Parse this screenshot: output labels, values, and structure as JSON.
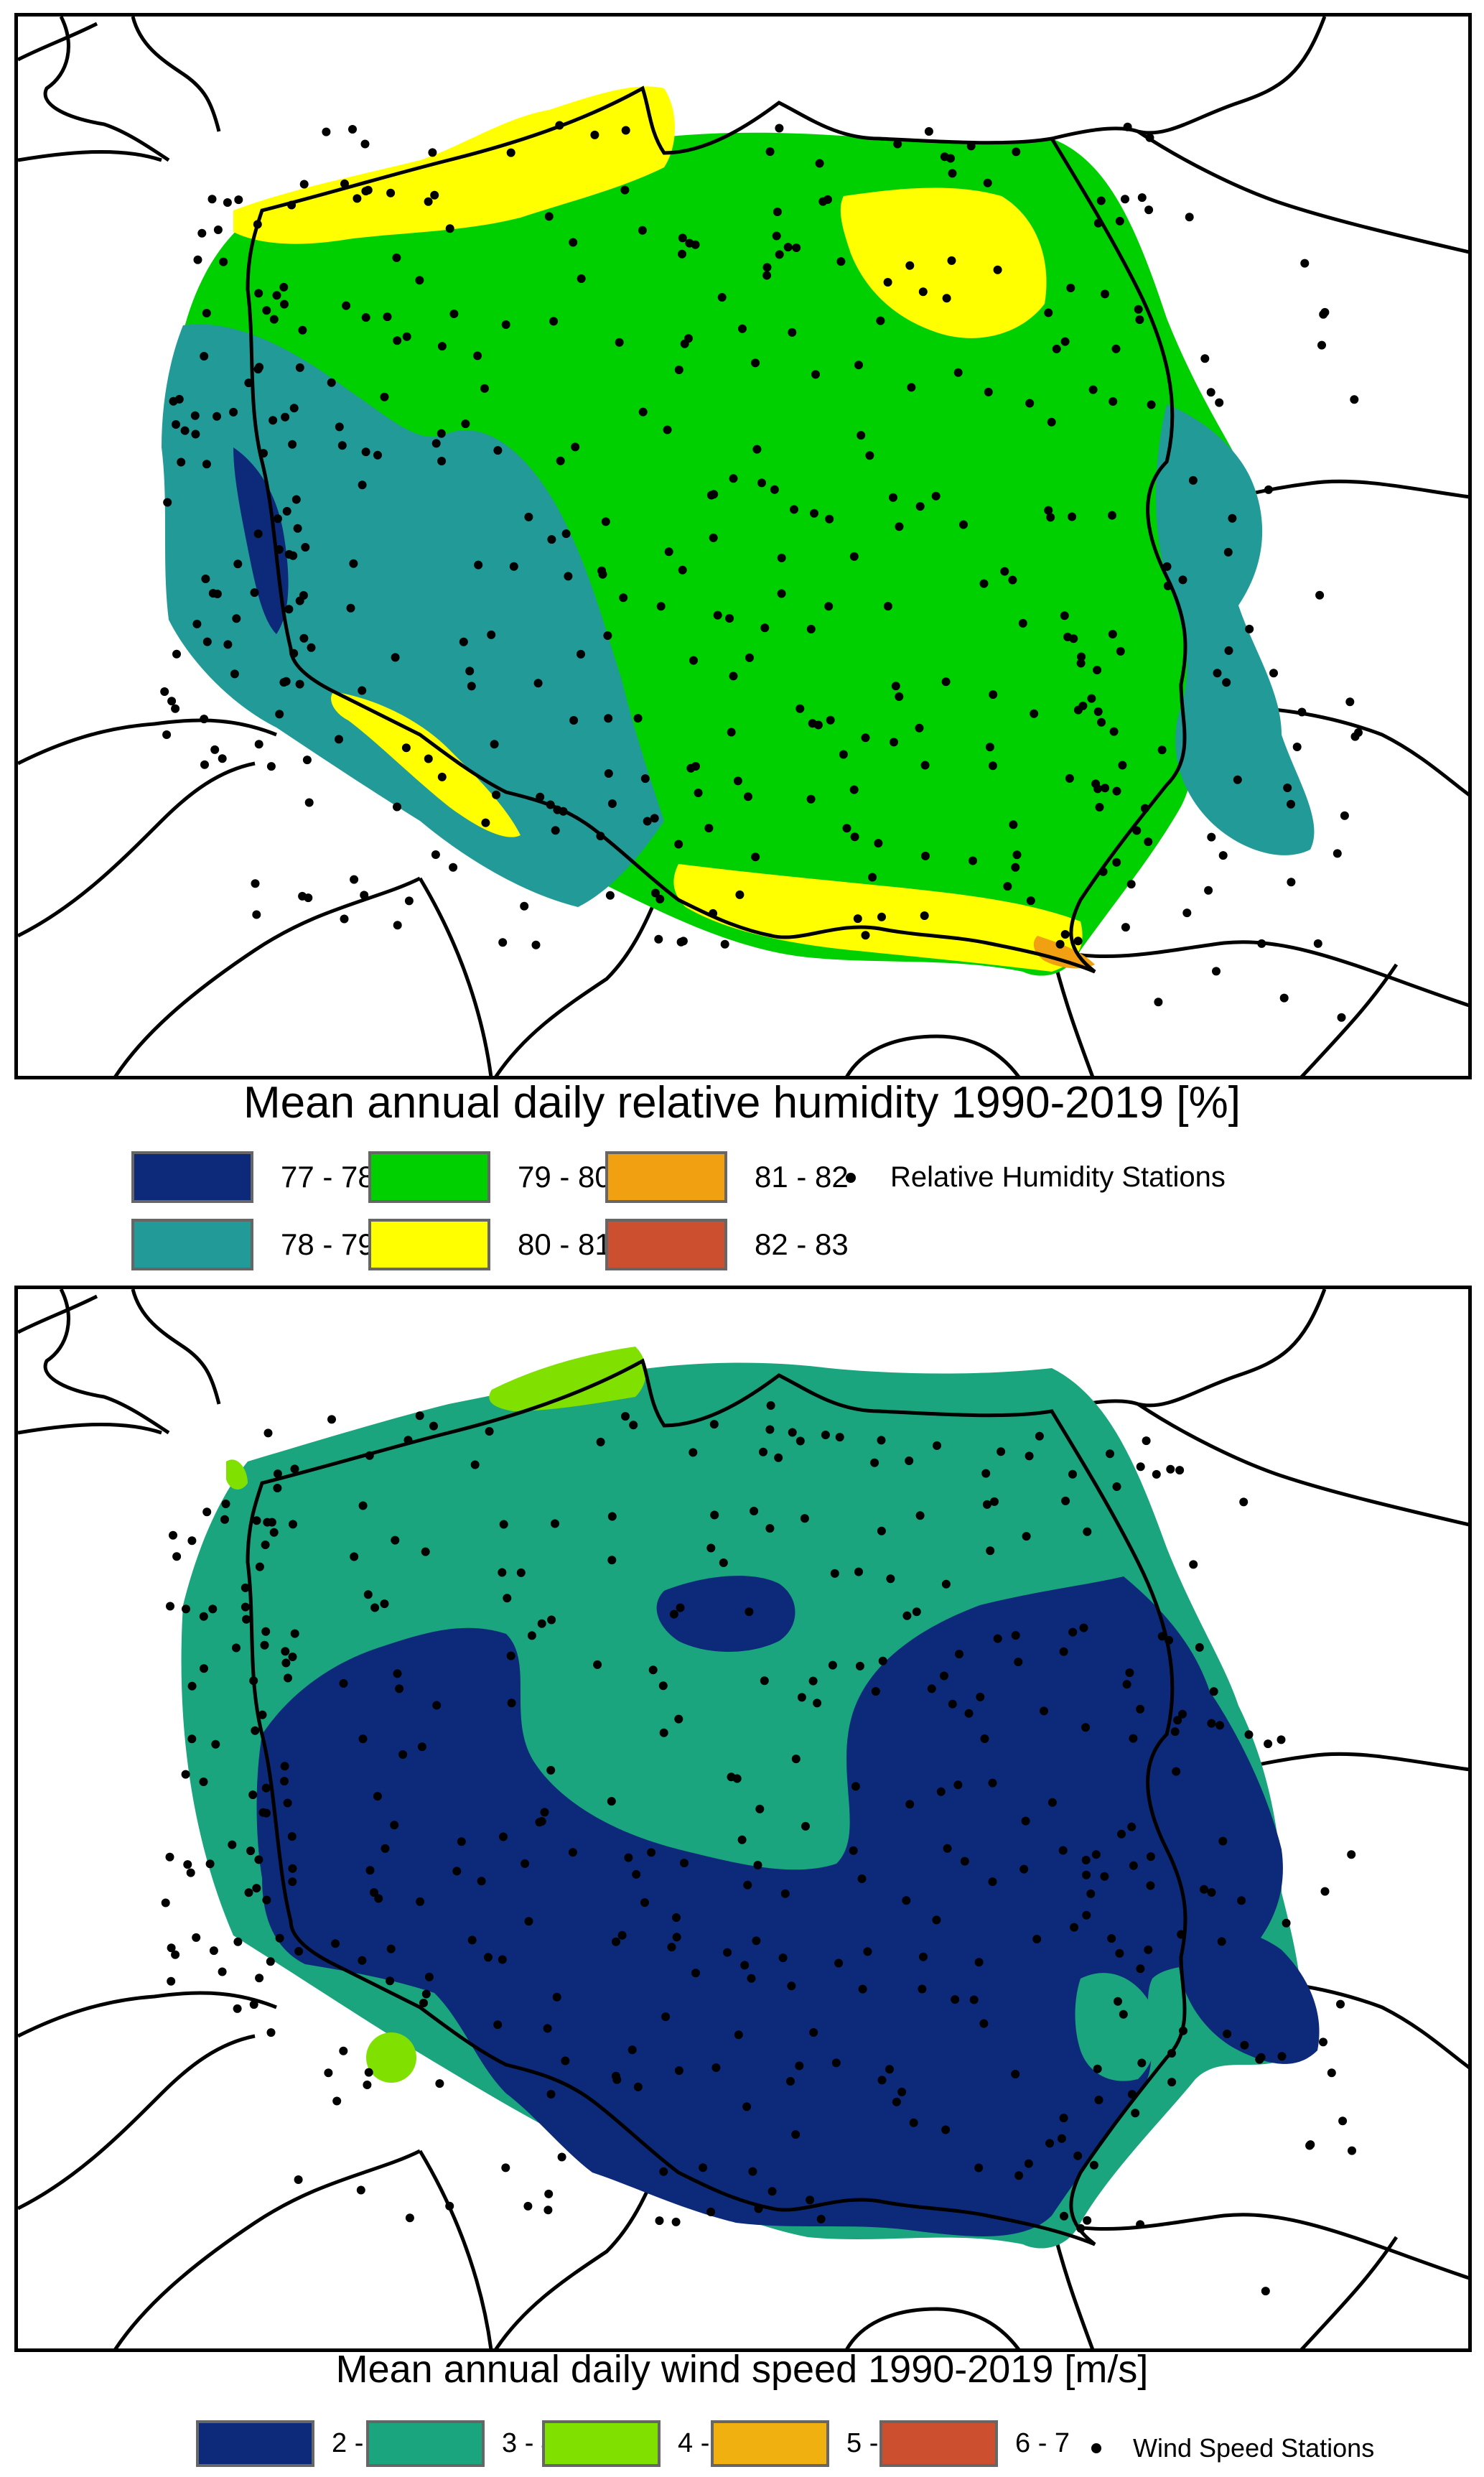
{
  "map1": {
    "title": "Mean annual daily relative humidity 1990-2019 [%]",
    "legend": [
      {
        "label": "77 - 78",
        "color": "#0d2a7a"
      },
      {
        "label": "78 - 79",
        "color": "#229b98"
      },
      {
        "label": "79 - 80",
        "color": "#00d000"
      },
      {
        "label": "80 - 81",
        "color": "#ffff00"
      },
      {
        "label": "81 - 82",
        "color": "#f0a010"
      },
      {
        "label": "82 - 83",
        "color": "#cc5030"
      }
    ],
    "stations_label": "Relative Humidity Stations"
  },
  "map2": {
    "title": "Mean annual daily wind speed 1990-2019 [m/s]",
    "legend": [
      {
        "label": "2 - 3",
        "color": "#0d2a7a"
      },
      {
        "label": "3 - 4",
        "color": "#1aa57e"
      },
      {
        "label": "4 - 5",
        "color": "#80e000"
      },
      {
        "label": "5 - 6",
        "color": "#f0b010"
      },
      {
        "label": "6 - 7",
        "color": "#cc5030"
      }
    ],
    "stations_label": "Wind Speed Stations"
  }
}
